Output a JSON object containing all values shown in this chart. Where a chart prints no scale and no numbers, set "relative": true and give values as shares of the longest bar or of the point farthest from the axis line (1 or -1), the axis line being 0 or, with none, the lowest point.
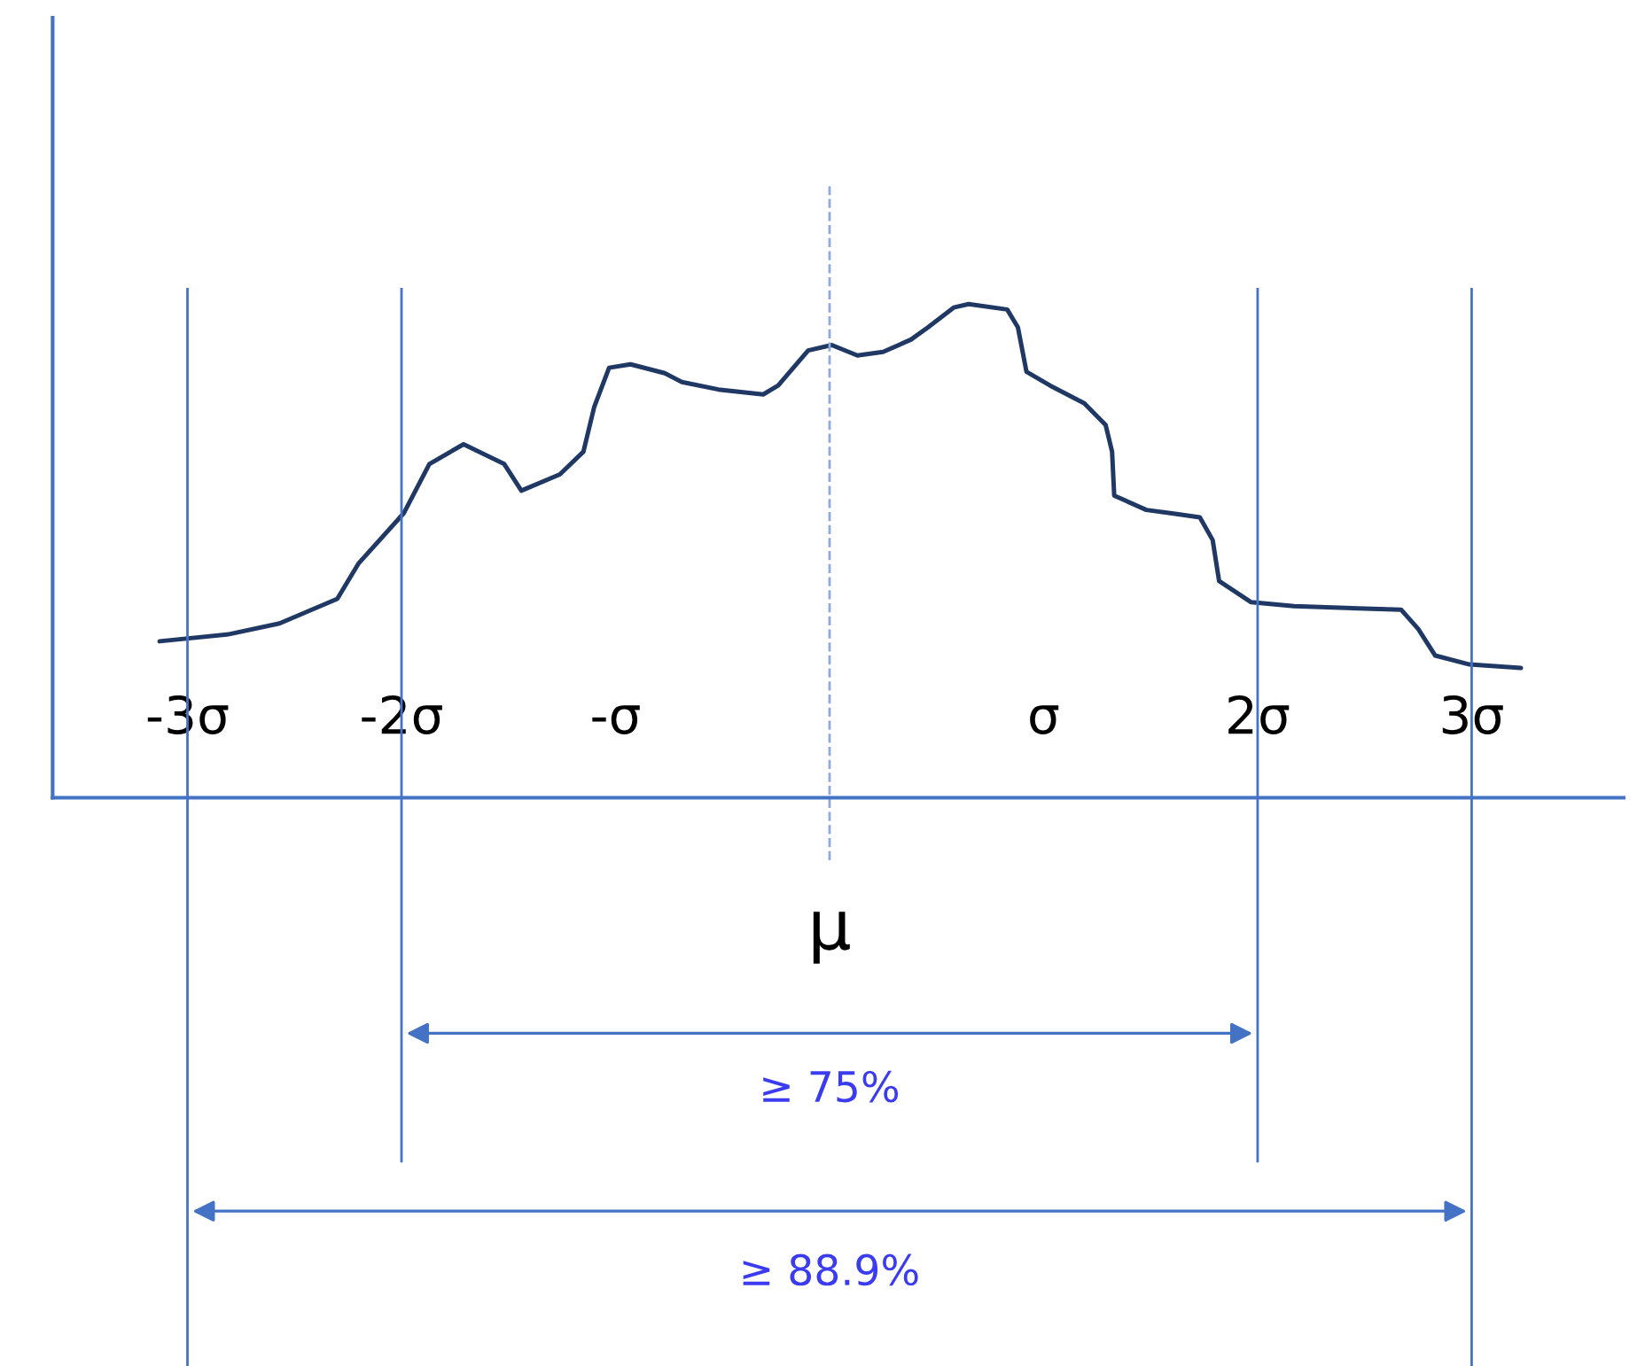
{
  "chart_data": {
    "type": "line",
    "relative": true,
    "color": "#1f3864",
    "x": [
      -3.13,
      -2.81,
      -2.57,
      -2.3,
      -2.2,
      -1.99,
      -1.87,
      -1.71,
      -1.52,
      -1.44,
      -1.26,
      -1.15,
      -1.1,
      -1.03,
      -0.93,
      -0.77,
      -0.69,
      -0.52,
      -0.31,
      -0.24,
      -0.1,
      0.01,
      0.13,
      0.25,
      0.38,
      0.46,
      0.58,
      0.65,
      0.83,
      0.88,
      0.92,
      1.03,
      1.19,
      1.29,
      1.32,
      1.33,
      1.48,
      1.6,
      1.73,
      1.79,
      1.82,
      1.97,
      2.17,
      2.67,
      2.75,
      2.83,
      2.99,
      3.23
    ],
    "values": [
      0.317,
      0.331,
      0.353,
      0.403,
      0.475,
      0.576,
      0.676,
      0.716,
      0.676,
      0.622,
      0.655,
      0.701,
      0.791,
      0.871,
      0.878,
      0.86,
      0.842,
      0.827,
      0.817,
      0.835,
      0.906,
      0.917,
      0.896,
      0.903,
      0.928,
      0.953,
      0.993,
      1,
      0.989,
      0.953,
      0.863,
      0.835,
      0.799,
      0.755,
      0.701,
      0.612,
      0.583,
      0.576,
      0.568,
      0.522,
      0.439,
      0.396,
      0.388,
      0.381,
      0.342,
      0.288,
      0.27,
      0.263
    ],
    "xlim": [
      -3.63,
      3.71
    ],
    "xticks": [
      {
        "value": -3,
        "label": "-3σ"
      },
      {
        "value": -2,
        "label": "-2σ"
      },
      {
        "value": -1,
        "label": "-σ"
      },
      {
        "value": 1,
        "label": "σ"
      },
      {
        "value": 2,
        "label": "2σ"
      },
      {
        "value": 3,
        "label": "3σ"
      }
    ],
    "ref_lines": [
      {
        "axis": "x",
        "value": -3,
        "color": "#4472c4"
      },
      {
        "axis": "x",
        "value": -2,
        "color": "#4472c4"
      },
      {
        "axis": "x",
        "value": 0,
        "label": "μ",
        "color": "#8faadc",
        "line_style": "dashed"
      },
      {
        "axis": "x",
        "value": 2,
        "color": "#4472c4"
      },
      {
        "axis": "x",
        "value": 3,
        "color": "#4472c4"
      }
    ],
    "annotations": [
      "≥ 75%",
      "≥ 88.9%"
    ],
    "grid": false,
    "legend": false
  }
}
